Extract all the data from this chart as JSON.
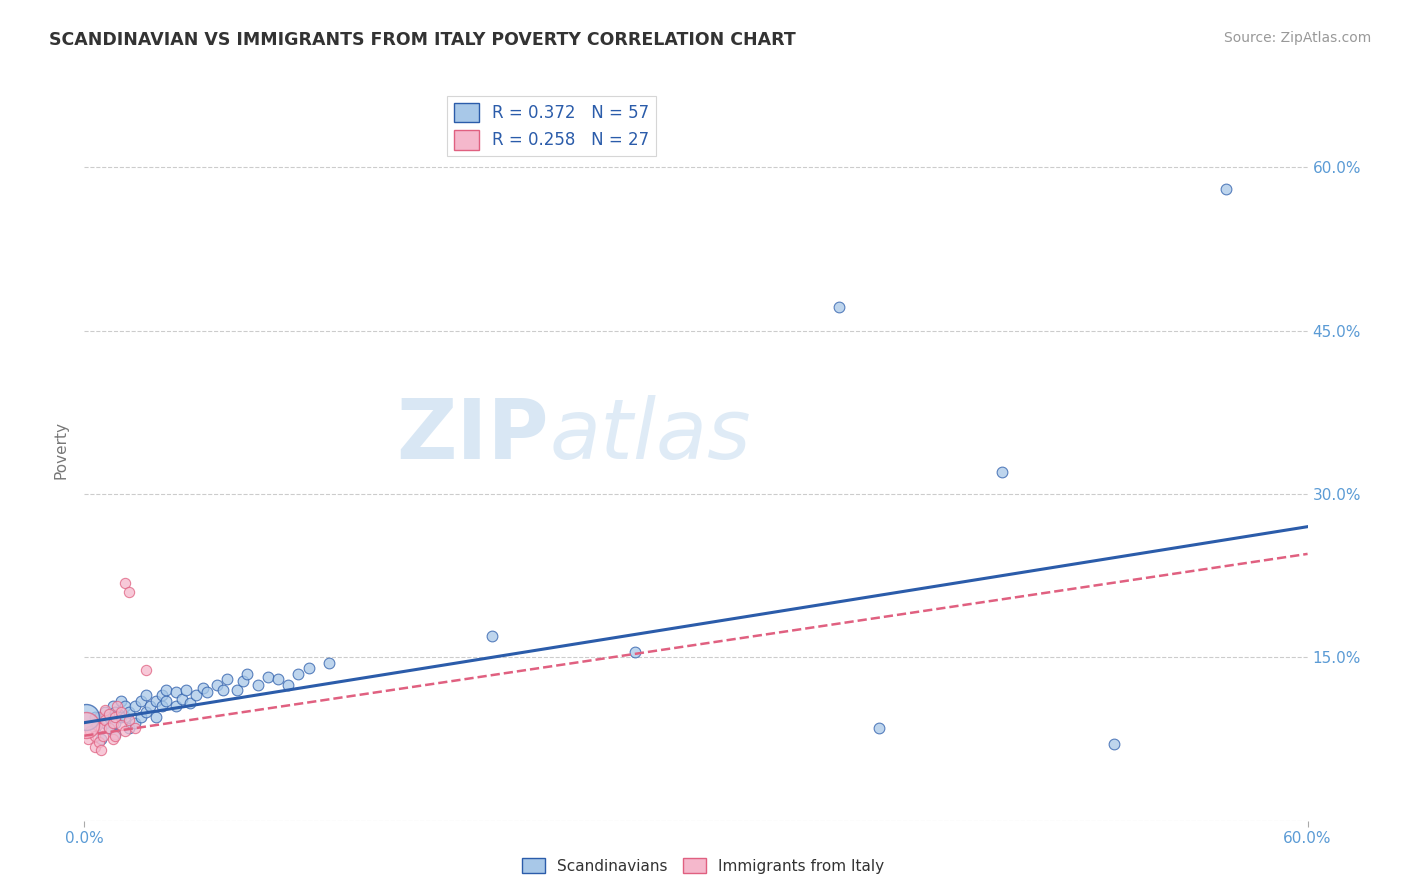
{
  "title": "SCANDINAVIAN VS IMMIGRANTS FROM ITALY POVERTY CORRELATION CHART",
  "source": "Source: ZipAtlas.com",
  "ylabel": "Poverty",
  "xlim": [
    0.0,
    0.6
  ],
  "ylim": [
    0.0,
    0.68
  ],
  "yticks": [
    0.0,
    0.15,
    0.3,
    0.45,
    0.6
  ],
  "ytick_labels": [
    "",
    "15.0%",
    "30.0%",
    "45.0%",
    "60.0%"
  ],
  "scand_color": "#a8c8e8",
  "italy_color": "#f5b8cc",
  "line_scand_color": "#2b5caa",
  "line_italy_color": "#e06080",
  "watermark_zip": "ZIP",
  "watermark_atlas": "atlas",
  "scand_points": [
    [
      0.005,
      0.085
    ],
    [
      0.005,
      0.095
    ],
    [
      0.008,
      0.075
    ],
    [
      0.01,
      0.09
    ],
    [
      0.01,
      0.1
    ],
    [
      0.012,
      0.085
    ],
    [
      0.012,
      0.095
    ],
    [
      0.014,
      0.105
    ],
    [
      0.015,
      0.08
    ],
    [
      0.015,
      0.09
    ],
    [
      0.015,
      0.1
    ],
    [
      0.018,
      0.095
    ],
    [
      0.018,
      0.11
    ],
    [
      0.02,
      0.095
    ],
    [
      0.02,
      0.105
    ],
    [
      0.022,
      0.085
    ],
    [
      0.022,
      0.1
    ],
    [
      0.025,
      0.09
    ],
    [
      0.025,
      0.105
    ],
    [
      0.028,
      0.095
    ],
    [
      0.028,
      0.11
    ],
    [
      0.03,
      0.1
    ],
    [
      0.03,
      0.115
    ],
    [
      0.032,
      0.105
    ],
    [
      0.035,
      0.095
    ],
    [
      0.035,
      0.11
    ],
    [
      0.038,
      0.105
    ],
    [
      0.038,
      0.115
    ],
    [
      0.04,
      0.11
    ],
    [
      0.04,
      0.12
    ],
    [
      0.045,
      0.105
    ],
    [
      0.045,
      0.118
    ],
    [
      0.048,
      0.112
    ],
    [
      0.05,
      0.12
    ],
    [
      0.052,
      0.108
    ],
    [
      0.055,
      0.115
    ],
    [
      0.058,
      0.122
    ],
    [
      0.06,
      0.118
    ],
    [
      0.065,
      0.125
    ],
    [
      0.068,
      0.12
    ],
    [
      0.07,
      0.13
    ],
    [
      0.075,
      0.12
    ],
    [
      0.078,
      0.128
    ],
    [
      0.08,
      0.135
    ],
    [
      0.085,
      0.125
    ],
    [
      0.09,
      0.132
    ],
    [
      0.095,
      0.13
    ],
    [
      0.1,
      0.125
    ],
    [
      0.105,
      0.135
    ],
    [
      0.11,
      0.14
    ],
    [
      0.12,
      0.145
    ],
    [
      0.2,
      0.17
    ],
    [
      0.27,
      0.155
    ],
    [
      0.37,
      0.472
    ],
    [
      0.39,
      0.085
    ],
    [
      0.45,
      0.32
    ],
    [
      0.505,
      0.07
    ],
    [
      0.56,
      0.58
    ]
  ],
  "italy_points": [
    [
      0.002,
      0.075
    ],
    [
      0.003,
      0.082
    ],
    [
      0.005,
      0.068
    ],
    [
      0.005,
      0.078
    ],
    [
      0.006,
      0.088
    ],
    [
      0.007,
      0.072
    ],
    [
      0.007,
      0.095
    ],
    [
      0.008,
      0.065
    ],
    [
      0.008,
      0.085
    ],
    [
      0.009,
      0.078
    ],
    [
      0.01,
      0.092
    ],
    [
      0.01,
      0.102
    ],
    [
      0.012,
      0.085
    ],
    [
      0.012,
      0.098
    ],
    [
      0.014,
      0.09
    ],
    [
      0.014,
      0.075
    ],
    [
      0.015,
      0.095
    ],
    [
      0.015,
      0.078
    ],
    [
      0.016,
      0.105
    ],
    [
      0.018,
      0.088
    ],
    [
      0.018,
      0.1
    ],
    [
      0.02,
      0.082
    ],
    [
      0.02,
      0.218
    ],
    [
      0.022,
      0.092
    ],
    [
      0.022,
      0.21
    ],
    [
      0.025,
      0.085
    ],
    [
      0.03,
      0.138
    ]
  ],
  "scand_sizes_factor": 60,
  "italy_sizes_factor": 55,
  "big_scand_size": 350,
  "big_italy_size": 350
}
